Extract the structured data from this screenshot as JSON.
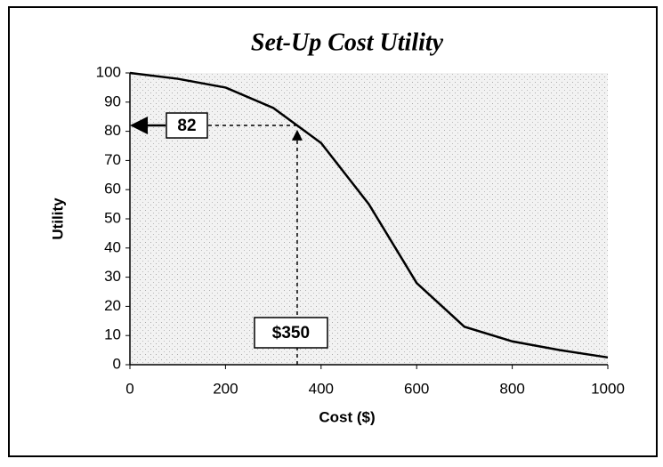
{
  "chart_data": {
    "type": "line",
    "title": "Set-Up Cost Utility",
    "x_label": "Cost ($)",
    "y_label": "Utility",
    "x": [
      0,
      100,
      200,
      300,
      400,
      500,
      600,
      700,
      800,
      900,
      1000
    ],
    "series": [
      {
        "name": "Utility",
        "color": "#000000",
        "values": [
          100,
          98,
          95,
          88,
          76,
          55,
          28,
          13,
          8,
          5,
          2.5
        ]
      }
    ],
    "xlim": [
      0,
      1000
    ],
    "xticks": [
      0,
      200,
      400,
      600,
      800,
      1000
    ],
    "ylim": [
      0,
      100
    ],
    "yticks": [
      0,
      10,
      20,
      30,
      40,
      50,
      60,
      70,
      80,
      90,
      100
    ],
    "annotations": [
      {
        "label": "82",
        "y": 82
      },
      {
        "label": "$350",
        "x": 350
      }
    ]
  }
}
